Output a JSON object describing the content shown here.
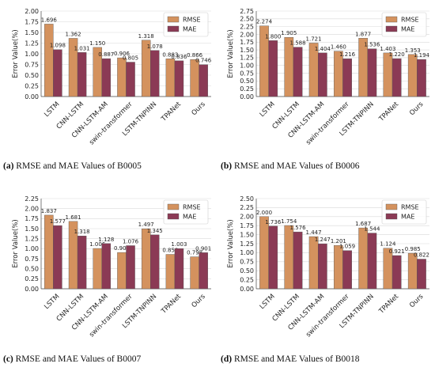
{
  "chart_data": [
    {
      "type": "bar",
      "panel": "a",
      "caption_letter": "(a)",
      "caption_text": " RMSE and MAE Values of B0005",
      "ylabel": "Error Value(%)",
      "ylim": [
        0,
        2.0
      ],
      "yticks": [
        "0.00",
        "0.25",
        "0.50",
        "0.75",
        "1.00",
        "1.25",
        "1.50",
        "1.75",
        "2.00"
      ],
      "categories": [
        "LSTM",
        "CNN-LSTM",
        "CNN-LSTM-AM",
        "swin-transformer",
        "LSTM-TNPINN",
        "TPANet",
        "Ours"
      ],
      "series": [
        {
          "name": "RMSE",
          "values": [
            1.696,
            1.362,
            1.15,
            0.906,
            1.318,
            0.883,
            0.866
          ],
          "labels": [
            "1.696",
            "1.362",
            "1.150",
            "0.906",
            "1.318",
            "0.883",
            "0.866"
          ]
        },
        {
          "name": "MAE",
          "values": [
            1.098,
            1.031,
            0.887,
            0.805,
            1.078,
            0.836,
            0.746
          ],
          "labels": [
            "1.098",
            "1.031",
            "0.887",
            "0.805",
            "1.078",
            "0.836",
            "0.746"
          ]
        }
      ],
      "legend_position": "top-right",
      "grid": true
    },
    {
      "type": "bar",
      "panel": "b",
      "caption_letter": "(b)",
      "caption_text": " RMSE and MAE Values of B0006",
      "ylabel": "Error Value(%)",
      "ylim": [
        0,
        2.75
      ],
      "yticks": [
        "0.00",
        "0.25",
        "0.50",
        "0.75",
        "1.00",
        "1.25",
        "1.50",
        "1.75",
        "2.00",
        "2.25",
        "2.50",
        "2.75"
      ],
      "categories": [
        "LSTM",
        "CNN-LSTM",
        "CNN-LSTM-AM",
        "swin-transformer",
        "LSTM-TNPINN",
        "TPANet",
        "Ours"
      ],
      "series": [
        {
          "name": "RMSE",
          "values": [
            2.274,
            1.905,
            1.721,
            1.46,
            1.877,
            1.403,
            1.353
          ],
          "labels": [
            "2.274",
            "1.905",
            "1.721",
            "1.460",
            "1.877",
            "1.403",
            "1.353"
          ]
        },
        {
          "name": "MAE",
          "values": [
            1.8,
            1.588,
            1.404,
            1.216,
            1.536,
            1.22,
            1.194
          ],
          "labels": [
            "1.800",
            "1.588",
            "1.404",
            "1.216",
            "1.536",
            "1.220",
            "1.194"
          ]
        }
      ],
      "legend_position": "top-right",
      "grid": true
    },
    {
      "type": "bar",
      "panel": "c",
      "caption_letter": "(c)",
      "caption_text": " RMSE and MAE Values of B0007",
      "ylabel": "Error Value(%)",
      "ylim": [
        0,
        2.25
      ],
      "yticks": [
        "0.00",
        "0.25",
        "0.50",
        "0.75",
        "1.00",
        "1.25",
        "1.50",
        "1.75",
        "2.00",
        "2.25"
      ],
      "categories": [
        "LSTM",
        "CNN-LSTM",
        "CNN-LSTM-AM",
        "swin-transformer",
        "LSTM-TNPINN",
        "TPANet",
        "Ours"
      ],
      "series": [
        {
          "name": "RMSE",
          "values": [
            1.837,
            1.681,
            1.006,
            0.906,
            1.497,
            0.858,
            0.798
          ],
          "labels": [
            "1.837",
            "1.681",
            "1.006",
            "0.906",
            "1.497",
            "0.858",
            "0.798"
          ]
        },
        {
          "name": "MAE",
          "values": [
            1.577,
            1.318,
            1.128,
            1.076,
            1.345,
            1.003,
            0.901
          ],
          "labels": [
            "1.577",
            "1.318",
            "1.128",
            "1.076",
            "1.345",
            "1.003",
            "0.901"
          ]
        }
      ],
      "legend_position": "top-right",
      "grid": true
    },
    {
      "type": "bar",
      "panel": "d",
      "caption_letter": "(d)",
      "caption_text": " RMSE and MAE Values of B0018",
      "ylabel": "Error Value(%)",
      "ylim": [
        0,
        2.5
      ],
      "yticks": [
        "0.00",
        "0.25",
        "0.50",
        "0.75",
        "1.00",
        "1.25",
        "1.50",
        "1.75",
        "2.00",
        "2.25",
        "2.50"
      ],
      "categories": [
        "LSTM",
        "CNN-LSTM",
        "CNN-LSTM-AM",
        "swin-transformer",
        "LSTM-TNPINN",
        "TPANet",
        "Ours"
      ],
      "series": [
        {
          "name": "RMSE",
          "values": [
            2.0,
            1.754,
            1.447,
            1.201,
            1.687,
            1.124,
            0.985
          ],
          "labels": [
            "2.000",
            "1.754",
            "1.447",
            "1.201",
            "1.687",
            "1.124",
            "0.985"
          ]
        },
        {
          "name": "MAE",
          "values": [
            1.736,
            1.576,
            1.247,
            1.059,
            1.544,
            0.921,
            0.822
          ],
          "labels": [
            "1.736",
            "1.576",
            "1.247",
            "1.059",
            "1.544",
            "0.921",
            "0.822"
          ]
        }
      ],
      "legend_position": "top-right",
      "grid": true
    }
  ],
  "colors": {
    "RMSE": "#d4925e",
    "MAE": "#8b3a55",
    "grid": "#d9d9d9",
    "text": "#222222"
  }
}
